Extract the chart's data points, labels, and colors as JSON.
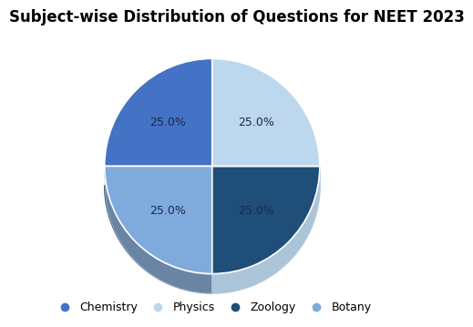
{
  "title": "Subject-wise Distribution of Questions for NEET 2023",
  "slices": [
    25.0,
    25.0,
    25.0,
    25.0
  ],
  "labels": [
    "Chemistry",
    "Botany",
    "Zoology",
    "Physics"
  ],
  "legend_labels": [
    "Chemistry",
    "Physics",
    "Zoology",
    "Botany"
  ],
  "colors": [
    "#4472C4",
    "#7FAADC",
    "#1F4E79",
    "#BDD7EE"
  ],
  "legend_colors": [
    "#4472C4",
    "#BDD7EE",
    "#1F4E79",
    "#7FAADC"
  ],
  "shadow_color": "#AAAAAA",
  "shadow_dark": "#2C5F8A",
  "pct_labels": [
    "25.0%",
    "25.0%",
    "25.0%",
    "25.0%"
  ],
  "background_color": "#FFFFFF",
  "title_fontsize": 12,
  "pct_fontsize": 9,
  "legend_fontsize": 9,
  "startangle": 90
}
